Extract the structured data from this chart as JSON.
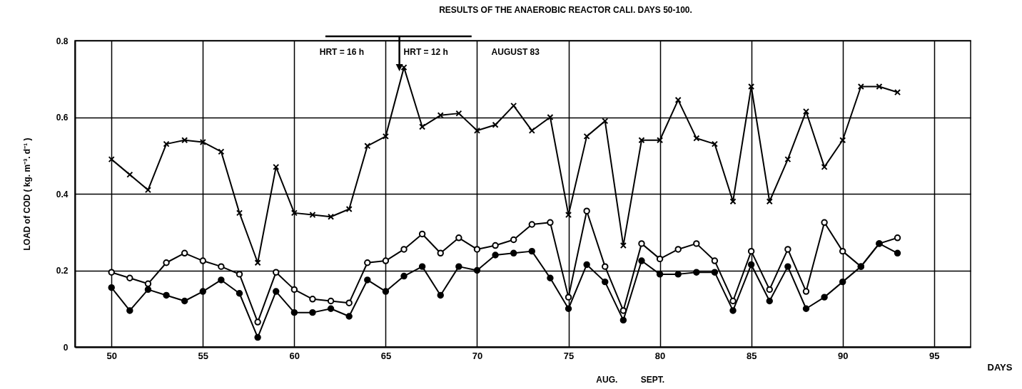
{
  "chart_data": {
    "type": "line",
    "title": "RESULTS   OF   THE   ANAEROBIC   REACTOR  CALI.  DAYS  50-100.",
    "xlabel": "DAYS",
    "ylabel": "LOAD   of   COD   ( kg. m⁻³. d⁻¹ )",
    "x": [
      50,
      51,
      52,
      53,
      54,
      55,
      56,
      57,
      58,
      59,
      60,
      61,
      62,
      63,
      64,
      65,
      66,
      67,
      68,
      69,
      70,
      71,
      72,
      73,
      74,
      75,
      76,
      77,
      78,
      79,
      80,
      81,
      82,
      83,
      84,
      85,
      86,
      87,
      88,
      89,
      90,
      91,
      92,
      93
    ],
    "series": [
      {
        "color": "#000000",
        "marker": "cross",
        "values": [
          0.49,
          0.45,
          0.41,
          0.53,
          0.54,
          0.535,
          0.51,
          0.35,
          0.22,
          0.47,
          0.35,
          0.345,
          0.34,
          0.36,
          0.525,
          0.55,
          0.73,
          0.575,
          0.605,
          0.61,
          0.565,
          0.58,
          0.63,
          0.565,
          0.6,
          0.345,
          0.55,
          0.59,
          0.265,
          0.54,
          0.54,
          0.645,
          0.545,
          0.53,
          0.38,
          0.68,
          0.38,
          0.49,
          0.615,
          0.47,
          0.54,
          0.68,
          0.68,
          0.665
        ]
      },
      {
        "color": "#000000",
        "marker": "circle",
        "values": [
          0.195,
          0.18,
          0.165,
          0.22,
          0.245,
          0.225,
          0.21,
          0.19,
          0.065,
          0.195,
          0.15,
          0.125,
          0.12,
          0.115,
          0.22,
          0.225,
          0.255,
          0.295,
          0.245,
          0.285,
          0.255,
          0.265,
          0.28,
          0.32,
          0.325,
          0.13,
          0.355,
          0.21,
          0.095,
          0.27,
          0.23,
          0.255,
          0.27,
          0.225,
          0.12,
          0.25,
          0.15,
          0.255,
          0.145,
          0.325,
          0.25,
          0.21,
          0.27,
          0.285
        ]
      },
      {
        "color": "#000000",
        "marker": "circle",
        "values": [
          0.155,
          0.095,
          0.15,
          0.135,
          0.12,
          0.145,
          0.175,
          0.14,
          0.025,
          0.145,
          0.09,
          0.09,
          0.1,
          0.08,
          0.175,
          0.145,
          0.185,
          0.21,
          0.135,
          0.21,
          0.2,
          0.24,
          0.245,
          0.25,
          0.18,
          0.1,
          0.215,
          0.17,
          0.07,
          0.225,
          0.19,
          0.19,
          0.195,
          0.195,
          0.095,
          0.215,
          0.12,
          0.21,
          0.1,
          0.13,
          0.17,
          0.21,
          0.27,
          0.245
        ]
      }
    ],
    "xlim": [
      48,
      97
    ],
    "xticks": [
      50,
      55,
      60,
      65,
      70,
      75,
      80,
      85,
      90,
      95
    ],
    "ylim": [
      0,
      0.8
    ],
    "yticks": [
      0,
      0.2,
      0.4,
      0.6,
      0.8
    ],
    "grid": true,
    "line_style": "solid",
    "annotations": [
      "HRT = 16 h",
      "HRT = 12 h",
      "AUGUST  83",
      "AUG.",
      "SEPT."
    ]
  }
}
